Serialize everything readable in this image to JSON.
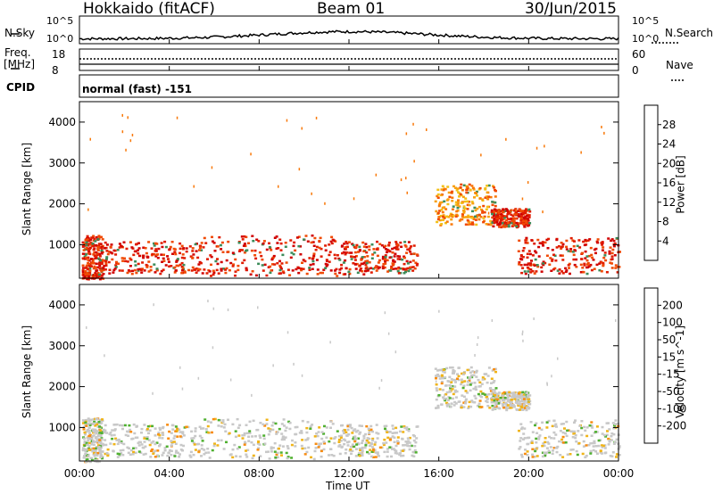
{
  "header": {
    "station": "Hokkaido (fitACF)",
    "beam": "Beam 01",
    "date": "30/Jun/2015"
  },
  "noise_panel": {
    "left_label": "N.Sky",
    "right_label": "N.Search",
    "left_ticks": [
      "10^5",
      "10^0"
    ],
    "right_ticks": [
      "10^5",
      "10^0"
    ]
  },
  "freq_panel": {
    "left_label_line1": "Freq.",
    "left_label_line2": "[MHz]",
    "left_ticks": [
      "18",
      "8"
    ],
    "right_ticks": [
      "60",
      "0"
    ],
    "right_label": "Nave"
  },
  "cpid": {
    "label": "CPID",
    "value": "normal (fast) -151"
  },
  "chart_data": [
    {
      "type": "heatmap",
      "quantity": "Power",
      "ylabel": "Slant Range [km]",
      "ylim": [
        180,
        4500
      ],
      "yticks": [
        "1000",
        "2000",
        "3000",
        "4000"
      ],
      "xlim_hours": [
        0,
        24
      ],
      "colorbar": {
        "label": "Power [dB]",
        "ticks": [
          "4",
          "8",
          "12",
          "16",
          "20",
          "24",
          "28"
        ],
        "colors": [
          "#0000ff",
          "#1f4fb4",
          "#2f8f7f",
          "#3c8c5a",
          "#6abf3f",
          "#f2c018",
          "#f8a010",
          "#f87808",
          "#f04a04",
          "#e01c00",
          "#d00000"
        ]
      },
      "regions": [
        {
          "t0": 0.1,
          "t1": 1.0,
          "r0": 180,
          "r1": 1250,
          "level": "high"
        },
        {
          "t0": 1.0,
          "t1": 5.5,
          "r0": 300,
          "r1": 1100,
          "level": "high"
        },
        {
          "t0": 5.5,
          "t1": 11.5,
          "r0": 250,
          "r1": 1250,
          "level": "high"
        },
        {
          "t0": 11.5,
          "t1": 15.0,
          "r0": 300,
          "r1": 1100,
          "level": "high"
        },
        {
          "t0": 15.8,
          "t1": 18.5,
          "r0": 1500,
          "r1": 2500,
          "level": "mid"
        },
        {
          "t0": 18.3,
          "t1": 20.0,
          "r0": 1450,
          "r1": 1900,
          "level": "high"
        },
        {
          "t0": 19.5,
          "t1": 24.0,
          "r0": 300,
          "r1": 1200,
          "level": "high"
        }
      ]
    },
    {
      "type": "heatmap",
      "quantity": "Velocity",
      "ylabel": "Slant Range [km]",
      "ylim": [
        180,
        4500
      ],
      "yticks": [
        "1000",
        "2000",
        "3000",
        "4000"
      ],
      "xlim_hours": [
        0,
        24
      ],
      "colorbar": {
        "label": "Velocity [m s^-1]",
        "ticks": [
          "200",
          "100",
          "50",
          "15",
          "-15",
          "-50",
          "-100",
          "-200"
        ],
        "colors": [
          "#1c1cc8",
          "#2a4aa8",
          "#2f7a6a",
          "#4fb030",
          "#c8c8c8",
          "#f0b418",
          "#f88c10",
          "#f05a08",
          "#e02000"
        ]
      },
      "xticks": [
        "00:00",
        "04:00",
        "08:00",
        "12:00",
        "16:00",
        "20:00",
        "00:00"
      ],
      "xlabel": "Time UT"
    }
  ]
}
